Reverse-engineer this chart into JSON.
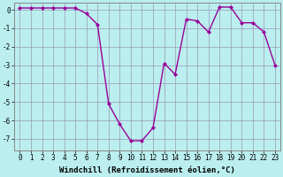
{
  "x": [
    0,
    1,
    2,
    3,
    4,
    5,
    6,
    7,
    8,
    9,
    10,
    11,
    12,
    13,
    14,
    15,
    16,
    17,
    18,
    19,
    20,
    21,
    22,
    23
  ],
  "y": [
    0.1,
    0.1,
    0.1,
    0.1,
    0.1,
    0.1,
    -0.2,
    -0.8,
    -5.1,
    -6.2,
    -7.1,
    -7.1,
    -6.4,
    -2.9,
    -3.5,
    -0.5,
    -0.6,
    -1.2,
    0.15,
    0.15,
    -0.7,
    -0.7,
    -1.2,
    -3.0
  ],
  "line_color": "#990099",
  "marker": "D",
  "markersize": 2.0,
  "linewidth": 1.0,
  "bg_color": "#bbeeee",
  "grid_color": "#9999bb",
  "xlabel": "Windchill (Refroidissement éolien,°C)",
  "xlabel_fontsize": 6.5,
  "ylabel_ticks": [
    0,
    -1,
    -2,
    -3,
    -4,
    -5,
    -6,
    -7
  ],
  "xtick_labels": [
    "0",
    "1",
    "2",
    "3",
    "4",
    "5",
    "6",
    "7",
    "8",
    "9",
    "10",
    "11",
    "12",
    "13",
    "14",
    "15",
    "16",
    "17",
    "18",
    "19",
    "20",
    "21",
    "22",
    "23"
  ],
  "xlim": [
    -0.5,
    23.5
  ],
  "ylim": [
    -7.6,
    0.4
  ],
  "tick_fontsize": 5.5,
  "ylabel_fontsize": 5.5
}
